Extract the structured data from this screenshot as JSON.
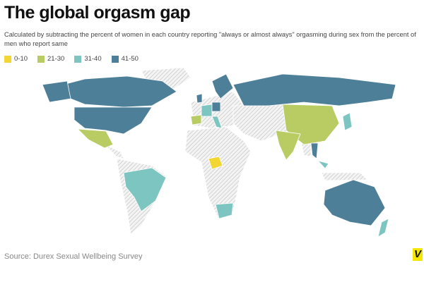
{
  "header": {
    "title": "The global orgasm gap",
    "subtitle": "Calculated by subtracting the percent of women in each country reporting \"always or almost always\" orgasming during sex from the percent of men who report same"
  },
  "legend": {
    "items": [
      {
        "label": "0-10",
        "color": "#f2d633"
      },
      {
        "label": "21-30",
        "color": "#b9cc63"
      },
      {
        "label": "31-40",
        "color": "#7cc5c0"
      },
      {
        "label": "41-50",
        "color": "#4d7f99"
      }
    ]
  },
  "footer": {
    "source": "Source: Durex Sexual Wellbeing Survey",
    "logo": "V"
  }
}
